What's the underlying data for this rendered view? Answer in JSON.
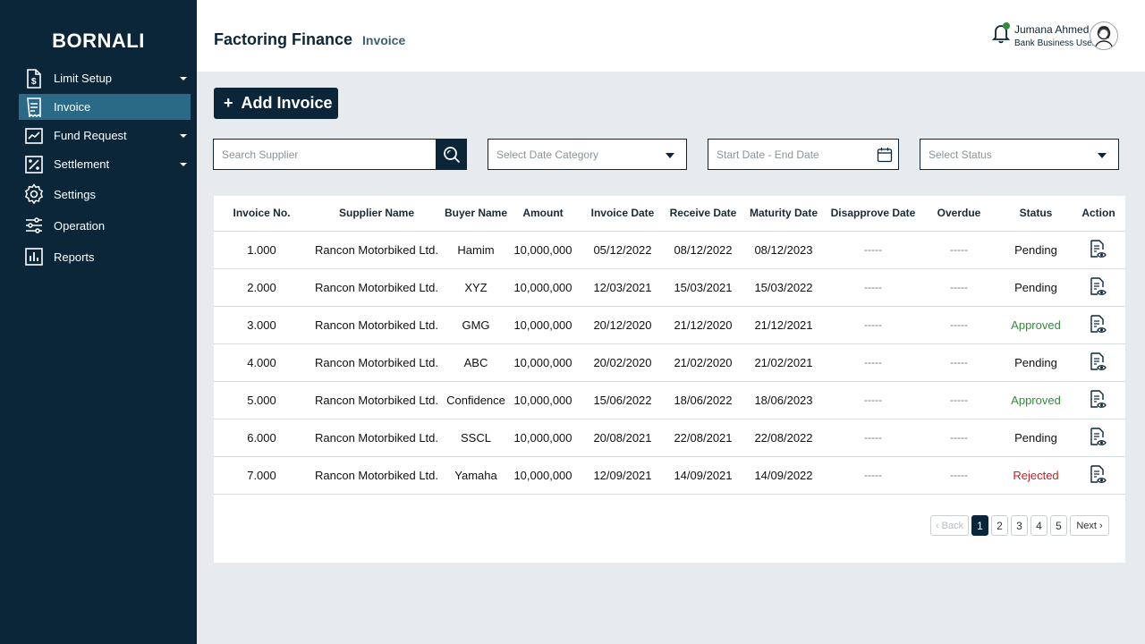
{
  "sidebar": {
    "brand": "BORNALI",
    "items": [
      {
        "label": "Limit Setup",
        "icon": "document-icon",
        "has_caret": true,
        "active": false
      },
      {
        "label": "Invoice",
        "icon": "receipt-icon",
        "has_caret": false,
        "active": true
      },
      {
        "label": "Fund Request",
        "icon": "chart-line-icon",
        "has_caret": true,
        "active": false
      },
      {
        "label": "Settlement",
        "icon": "percent-icon",
        "has_caret": true,
        "active": false
      },
      {
        "label": "Settings",
        "icon": "gear-icon",
        "has_caret": false,
        "active": false
      },
      {
        "label": "Operation",
        "icon": "sliders-icon",
        "has_caret": false,
        "active": false
      },
      {
        "label": "Reports",
        "icon": "bar-chart-icon",
        "has_caret": false,
        "active": false
      }
    ]
  },
  "header": {
    "title": "Factoring Finance",
    "breadcrumb": "Invoice",
    "user_name": "Jumana Ahmed",
    "user_role": "Bank Business User"
  },
  "toolbar": {
    "add_label": "Add Invoice",
    "search_placeholder": "Search Supplier",
    "date_category_placeholder": "Select Date Category",
    "date_range_placeholder": "Start Date - End Date",
    "status_placeholder": "Select Status"
  },
  "table": {
    "columns": [
      "Invoice No.",
      "Supplier Name",
      "Buyer Name",
      "Amount",
      "Invoice Date",
      "Receive Date",
      "Maturity Date",
      "Disapprove Date",
      "Overdue",
      "Status",
      "Action"
    ],
    "rows": [
      {
        "invoice_no": "1.000",
        "supplier": "Rancon Motorbiked Ltd.",
        "buyer": "Hamim",
        "amount": "10,000,000",
        "invoice_date": "05/12/2022",
        "receive_date": "08/12/2022",
        "maturity_date": "08/12/2023",
        "disapprove_date": "-----",
        "overdue": "-----",
        "status": "Pending"
      },
      {
        "invoice_no": "2.000",
        "supplier": "Rancon Motorbiked Ltd.",
        "buyer": "XYZ",
        "amount": "10,000,000",
        "invoice_date": "12/03/2021",
        "receive_date": "15/03/2021",
        "maturity_date": "15/03/2022",
        "disapprove_date": "-----",
        "overdue": "-----",
        "status": "Pending"
      },
      {
        "invoice_no": "3.000",
        "supplier": "Rancon Motorbiked Ltd.",
        "buyer": "GMG",
        "amount": "10,000,000",
        "invoice_date": "20/12/2020",
        "receive_date": "21/12/2020",
        "maturity_date": "21/12/2021",
        "disapprove_date": "-----",
        "overdue": "-----",
        "status": "Approved"
      },
      {
        "invoice_no": "4.000",
        "supplier": "Rancon Motorbiked Ltd.",
        "buyer": "ABC",
        "amount": "10,000,000",
        "invoice_date": "20/02/2020",
        "receive_date": "21/02/2020",
        "maturity_date": "21/02/2021",
        "disapprove_date": "-----",
        "overdue": "-----",
        "status": "Pending"
      },
      {
        "invoice_no": "5.000",
        "supplier": "Rancon Motorbiked Ltd.",
        "buyer": "Confidence",
        "amount": "10,000,000",
        "invoice_date": "15/06/2022",
        "receive_date": "18/06/2022",
        "maturity_date": "18/06/2023",
        "disapprove_date": "-----",
        "overdue": "-----",
        "status": "Approved"
      },
      {
        "invoice_no": "6.000",
        "supplier": "Rancon Motorbiked Ltd.",
        "buyer": "SSCL",
        "amount": "10,000,000",
        "invoice_date": "20/08/2021",
        "receive_date": "22/08/2021",
        "maturity_date": "22/08/2022",
        "disapprove_date": "-----",
        "overdue": "-----",
        "status": "Pending"
      },
      {
        "invoice_no": "7.000",
        "supplier": "Rancon Motorbiked Ltd.",
        "buyer": "Yamaha",
        "amount": "10,000,000",
        "invoice_date": "12/09/2021",
        "receive_date": "14/09/2021",
        "maturity_date": "14/09/2022",
        "disapprove_date": "-----",
        "overdue": "-----",
        "status": "Rejected"
      }
    ]
  },
  "pagination": {
    "back_label": "Back",
    "next_label": "Next",
    "pages": [
      "1",
      "2",
      "3",
      "4",
      "5"
    ],
    "current": "1"
  },
  "colors": {
    "sidebar_bg": "#0b2638",
    "active_item": "#2b6a86",
    "approved": "#2f8f3a",
    "rejected": "#d41b1b",
    "notification_dot": "#2f8f3a"
  }
}
